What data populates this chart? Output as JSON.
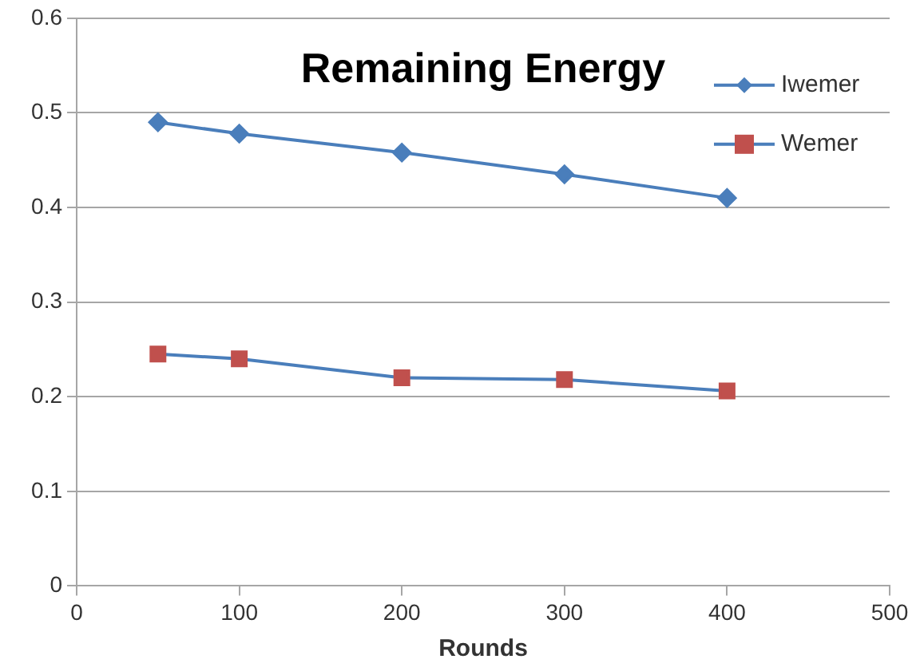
{
  "chart_data": {
    "type": "line",
    "title": "Remaining Energy",
    "xlabel": "Rounds",
    "x": [
      50,
      100,
      200,
      300,
      400
    ],
    "series": [
      {
        "name": "Iwemer",
        "color": "#4a7ebb",
        "marker": "diamond",
        "values": [
          0.49,
          0.478,
          0.458,
          0.435,
          0.41
        ]
      },
      {
        "name": "Wemer",
        "color": "#4a7ebb",
        "colors": [
          "#c0504d",
          "#c0504d",
          "#c0504d",
          "#c0504d",
          "#c0504d"
        ],
        "marker": "square",
        "values": [
          0.245,
          0.24,
          0.22,
          0.218,
          0.206
        ]
      }
    ],
    "xlim": [
      0,
      500
    ],
    "xticks": [
      0,
      100,
      200,
      300,
      400,
      500
    ],
    "ylim": [
      0,
      0.6
    ],
    "yticks": [
      0,
      0.1,
      0.2,
      0.3,
      0.4,
      0.5,
      0.6
    ],
    "grid": "y",
    "legend": "top right"
  }
}
